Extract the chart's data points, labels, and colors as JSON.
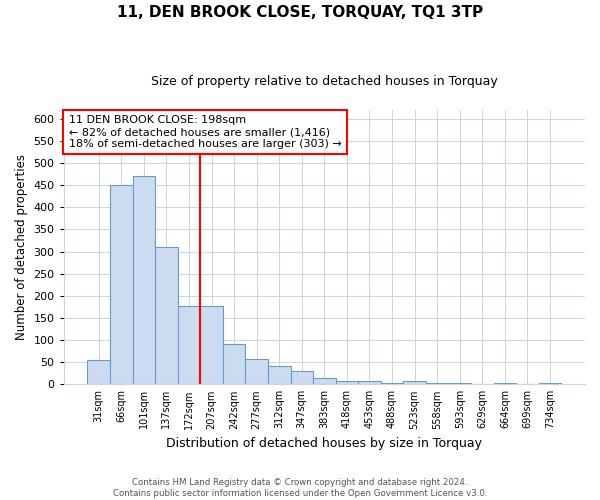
{
  "title": "11, DEN BROOK CLOSE, TORQUAY, TQ1 3TP",
  "subtitle": "Size of property relative to detached houses in Torquay",
  "xlabel": "Distribution of detached houses by size in Torquay",
  "ylabel": "Number of detached properties",
  "categories": [
    "31sqm",
    "66sqm",
    "101sqm",
    "137sqm",
    "172sqm",
    "207sqm",
    "242sqm",
    "277sqm",
    "312sqm",
    "347sqm",
    "383sqm",
    "418sqm",
    "453sqm",
    "488sqm",
    "523sqm",
    "558sqm",
    "593sqm",
    "629sqm",
    "664sqm",
    "699sqm",
    "734sqm"
  ],
  "values": [
    55,
    450,
    470,
    310,
    178,
    178,
    90,
    58,
    42,
    31,
    15,
    8,
    8,
    2,
    8,
    2,
    2,
    0,
    3,
    0,
    2
  ],
  "bar_color_fill": "#ccdcf0",
  "bar_color_edge": "#6699cc",
  "property_line_label": "11 DEN BROOK CLOSE: 198sqm",
  "annotation_smaller": "← 82% of detached houses are smaller (1,416)",
  "annotation_larger": "18% of semi-detached houses are larger (303) →",
  "ylim": [
    0,
    620
  ],
  "yticks": [
    0,
    50,
    100,
    150,
    200,
    250,
    300,
    350,
    400,
    450,
    500,
    550,
    600
  ],
  "footer_line1": "Contains HM Land Registry data © Crown copyright and database right 2024.",
  "footer_line2": "Contains public sector information licensed under the Open Government Licence v3.0.",
  "background_color": "#ffffff",
  "grid_color": "#c8d4e4"
}
